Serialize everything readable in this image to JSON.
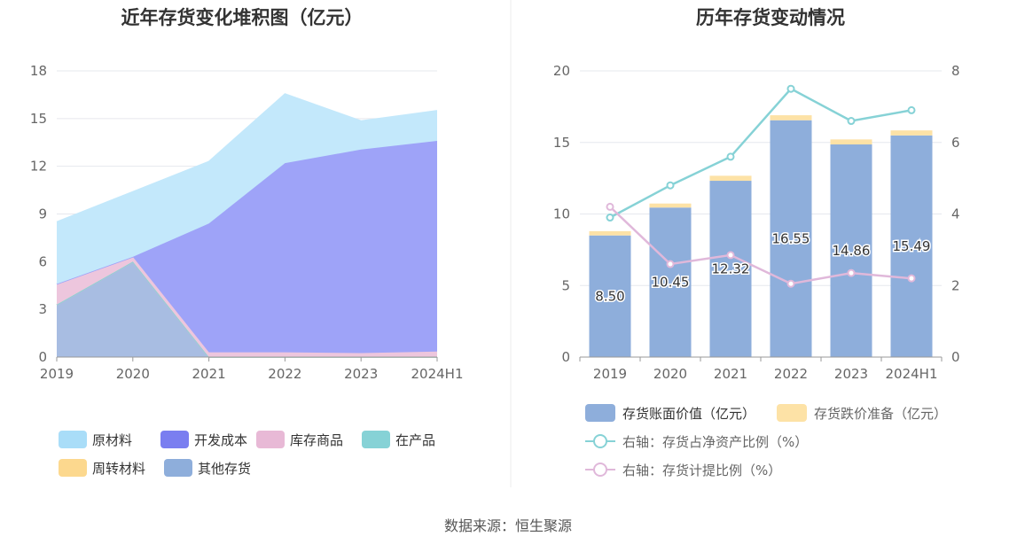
{
  "source": "数据来源：恒生聚源",
  "chart_data": [
    {
      "type": "area",
      "title": "近年存货变化堆积图（亿元）",
      "stacked": true,
      "categories": [
        "2019",
        "2020",
        "2021",
        "2022",
        "2023",
        "2024H1"
      ],
      "ylim": [
        0,
        18
      ],
      "yticks": [
        "0",
        "3",
        "6",
        "9",
        "12",
        "15",
        "18"
      ],
      "grid": true,
      "legend_position": "bottom",
      "series": [
        {
          "name": "其他存货",
          "color": "#a8bde2",
          "values": [
            3.3,
            6.0,
            0,
            0,
            0,
            0
          ]
        },
        {
          "name": "周转材料",
          "color": "#fcd88e",
          "values": [
            0,
            0,
            0,
            0,
            0,
            0
          ]
        },
        {
          "name": "在产品",
          "color": "#86d2d6",
          "values": [
            0,
            0,
            0,
            0,
            0,
            0
          ]
        },
        {
          "name": "库存商品",
          "color": "#edc6dd",
          "values": [
            1.3,
            0.3,
            0.3,
            0.3,
            0.25,
            0.35
          ]
        },
        {
          "name": "开发成本",
          "color": "#9ea3f8",
          "values": [
            0,
            0,
            8.1,
            11.9,
            12.8,
            13.25
          ]
        },
        {
          "name": "原材料",
          "color": "#c3e8fb",
          "values": [
            3.9,
            4.1,
            3.9,
            4.35,
            1.8,
            1.9
          ]
        }
      ],
      "legend": [
        {
          "name": "原材料",
          "color": "#a9ddf8"
        },
        {
          "name": "开发成本",
          "color": "#7a7ef0"
        },
        {
          "name": "库存商品",
          "color": "#e8b9d6"
        },
        {
          "name": "在产品",
          "color": "#86d2d6"
        },
        {
          "name": "周转材料",
          "color": "#fcd88e"
        },
        {
          "name": "其他存货",
          "color": "#8eaedb"
        }
      ]
    },
    {
      "type": "bar",
      "title": "历年存货变动情况",
      "stacked": true,
      "categories": [
        "2019",
        "2020",
        "2021",
        "2022",
        "2023",
        "2024H1"
      ],
      "ylim": [
        0,
        20
      ],
      "yticks": [
        "0",
        "5",
        "10",
        "15",
        "20"
      ],
      "y2lim": [
        0,
        8
      ],
      "y2ticks": [
        "0",
        "2",
        "4",
        "6",
        "8"
      ],
      "grid": true,
      "legend_position": "bottom",
      "bars": [
        {
          "name": "存货账面价值（亿元）",
          "color": "#8eaedb",
          "values": [
            8.5,
            10.45,
            12.32,
            16.55,
            14.86,
            15.49
          ],
          "labels": [
            "8.50",
            "10.45",
            "12.32",
            "16.55",
            "14.86",
            "15.49"
          ]
        },
        {
          "name": "存货跌价准备（亿元）",
          "color": "#fde2a6",
          "values": [
            0.3,
            0.28,
            0.35,
            0.35,
            0.35,
            0.35
          ]
        }
      ],
      "lines": [
        {
          "name": "右轴：存货占净资产比例（%）",
          "color": "#86d2d6",
          "values": [
            3.9,
            4.8,
            5.6,
            7.5,
            6.6,
            6.9
          ]
        },
        {
          "name": "右轴：存货计提比例（%）",
          "color": "#e0b8da",
          "values": [
            4.2,
            2.6,
            2.85,
            2.05,
            2.35,
            2.2
          ]
        }
      ]
    }
  ]
}
